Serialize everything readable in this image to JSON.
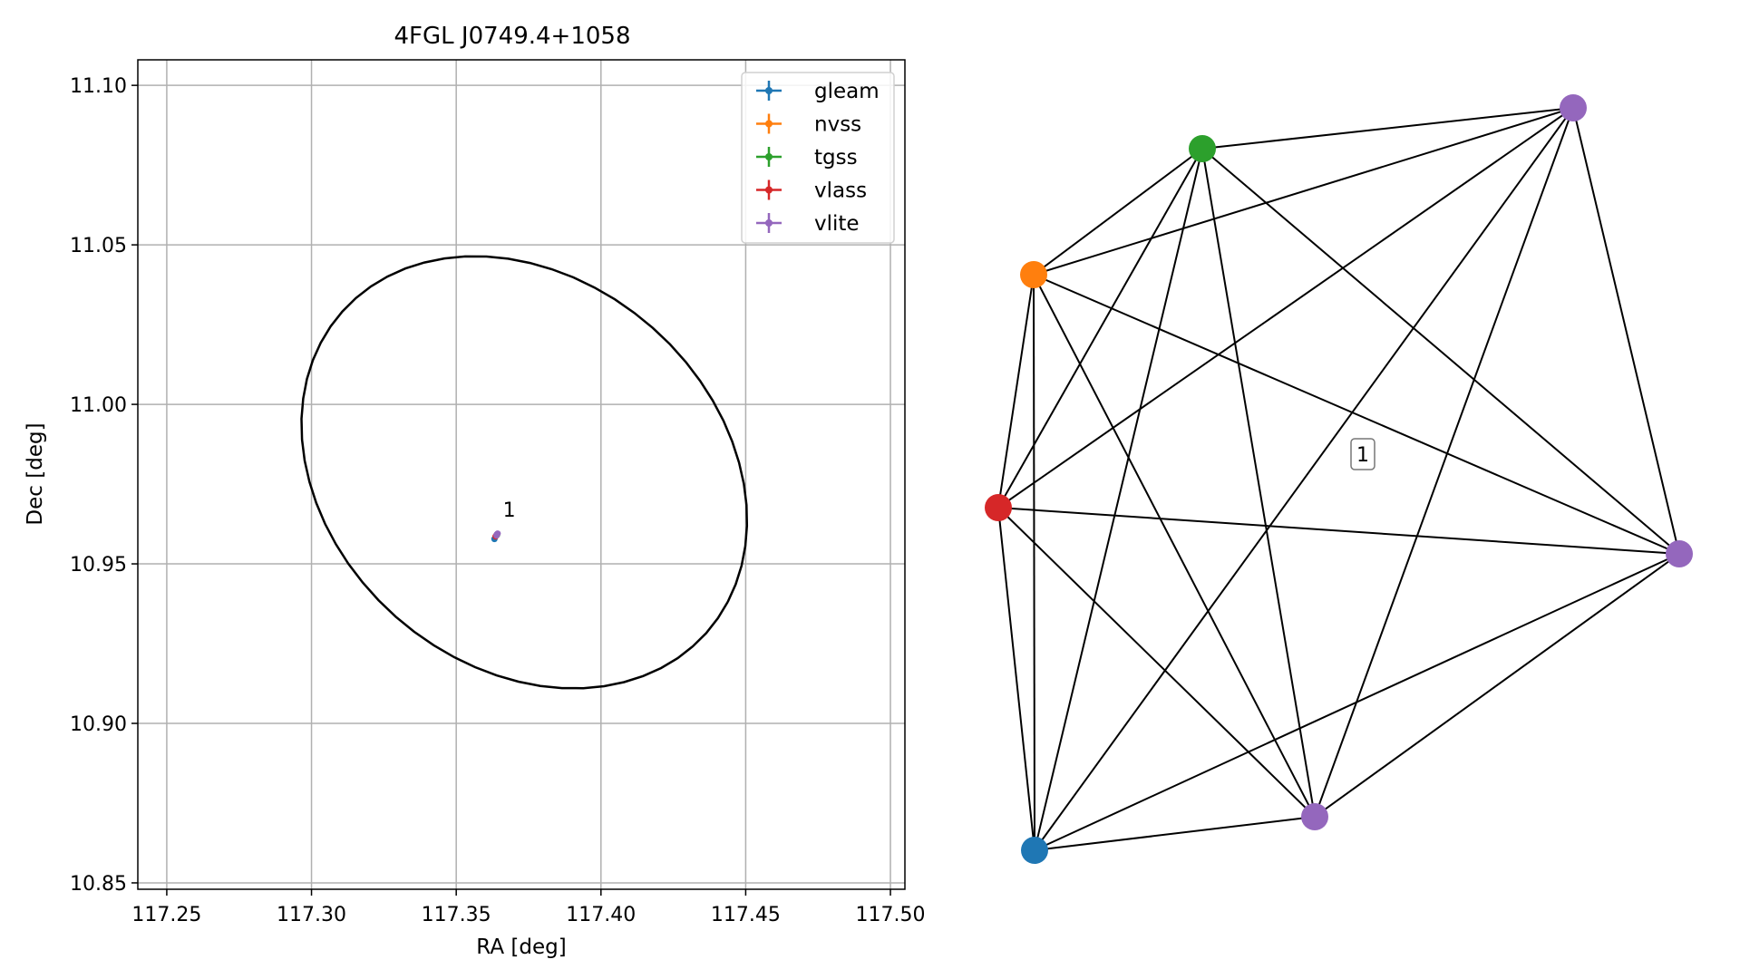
{
  "chart_data": [
    {
      "type": "scatter",
      "title": "4FGL J0749.4+1058",
      "xlabel": "RA [deg]",
      "ylabel": "Dec [deg]",
      "xlim": [
        117.24,
        117.505
      ],
      "ylim": [
        10.848,
        11.108
      ],
      "xticks": [
        117.25,
        117.3,
        117.35,
        117.4,
        117.45,
        117.5
      ],
      "xtick_labels": [
        "117.25",
        "117.30",
        "117.35",
        "117.40",
        "117.45",
        "117.50"
      ],
      "yticks": [
        10.85,
        10.9,
        10.95,
        11.0,
        11.05,
        11.1
      ],
      "ytick_labels": [
        "10.85",
        "10.90",
        "10.95",
        "11.00",
        "11.05",
        "11.10"
      ],
      "grid": true,
      "legend_position": "top-right",
      "series": [
        {
          "name": "gleam",
          "color": "#1f77b4",
          "points": [
            {
              "x": 117.3632,
              "y": 10.9578
            }
          ]
        },
        {
          "name": "nvss",
          "color": "#ff7f0e",
          "points": [
            {
              "x": 117.3638,
              "y": 10.9588
            }
          ]
        },
        {
          "name": "tgss",
          "color": "#2ca02c",
          "points": [
            {
              "x": 117.3641,
              "y": 10.9591
            }
          ]
        },
        {
          "name": "vlass",
          "color": "#d62728",
          "points": [
            {
              "x": 117.3636,
              "y": 10.9586
            }
          ]
        },
        {
          "name": "vlite",
          "color": "#9467bd",
          "points": [
            {
              "x": 117.364,
              "y": 10.9592
            },
            {
              "x": 117.3643,
              "y": 10.9595
            },
            {
              "x": 117.3639,
              "y": 10.9589
            }
          ]
        }
      ],
      "ellipse": {
        "center_x": 117.3735,
        "center_y": 10.9787,
        "semi_major": 0.0812,
        "semi_minor": 0.0626,
        "angle_deg": -30
      },
      "annotations": [
        {
          "text": "1",
          "x": 117.3655,
          "y": 10.9625
        }
      ]
    },
    {
      "type": "network",
      "nodes": [
        {
          "id": "tgss",
          "color": "#2ca02c"
        },
        {
          "id": "vlite_a",
          "color": "#9467bd"
        },
        {
          "id": "nvss",
          "color": "#ff7f0e"
        },
        {
          "id": "vlass",
          "color": "#d62728"
        },
        {
          "id": "vlite_b",
          "color": "#9467bd"
        },
        {
          "id": "vlite_c",
          "color": "#9467bd"
        },
        {
          "id": "gleam",
          "color": "#1f77b4"
        }
      ],
      "edges": "complete",
      "label": "1"
    }
  ]
}
